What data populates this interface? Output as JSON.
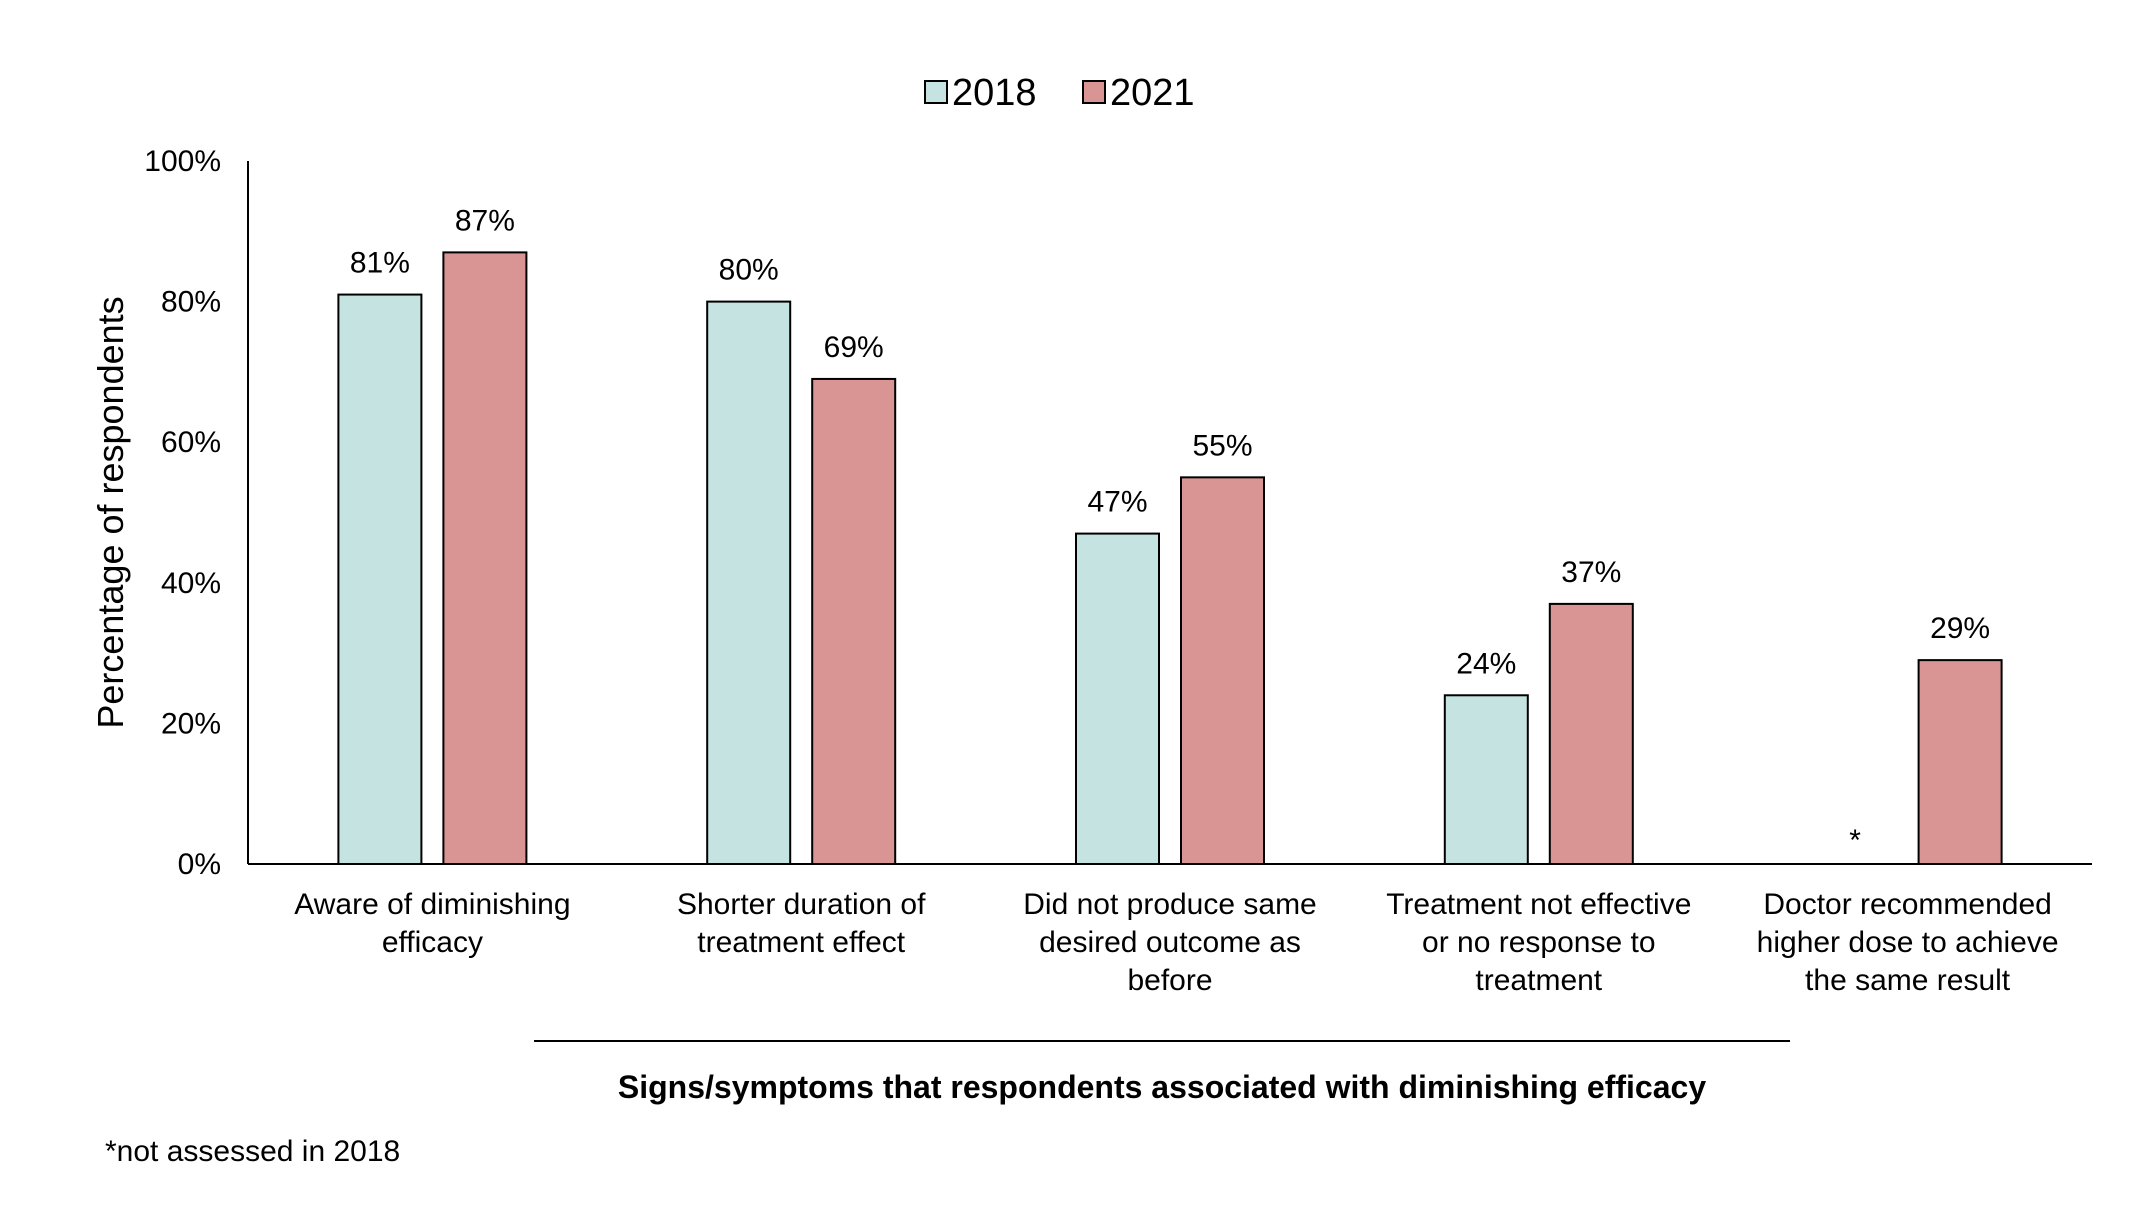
{
  "chart_data": {
    "type": "bar",
    "categories": [
      [
        "Aware of diminishing",
        "efficacy"
      ],
      [
        "Shorter duration of",
        "treatment effect"
      ],
      [
        "Did not produce same",
        "desired outcome as",
        "before"
      ],
      [
        "Treatment not effective",
        "or no response to",
        "treatment"
      ],
      [
        "Doctor recommended",
        "higher dose to achieve",
        "the same result"
      ]
    ],
    "series": [
      {
        "name": "2018",
        "color": "#c5e3e1",
        "values": [
          81,
          80,
          47,
          24,
          null
        ],
        "labels": [
          "81%",
          "80%",
          "47%",
          "24%",
          "*"
        ]
      },
      {
        "name": "2021",
        "color": "#d99594",
        "values": [
          87,
          69,
          55,
          37,
          29
        ],
        "labels": [
          "87%",
          "69%",
          "55%",
          "37%",
          "29%"
        ]
      }
    ],
    "ylabel": "Percentage of respondents",
    "xlabel": "Signs/symptoms that respondents associated with diminishing efficacy",
    "ylim": [
      0,
      100
    ],
    "yticks": [
      0,
      20,
      40,
      60,
      80,
      100
    ],
    "ytick_labels": [
      "0%",
      "20%",
      "40%",
      "60%",
      "80%",
      "100%"
    ],
    "legend_position": "top-center",
    "grid": false
  },
  "footnote": "*not assessed in 2018"
}
